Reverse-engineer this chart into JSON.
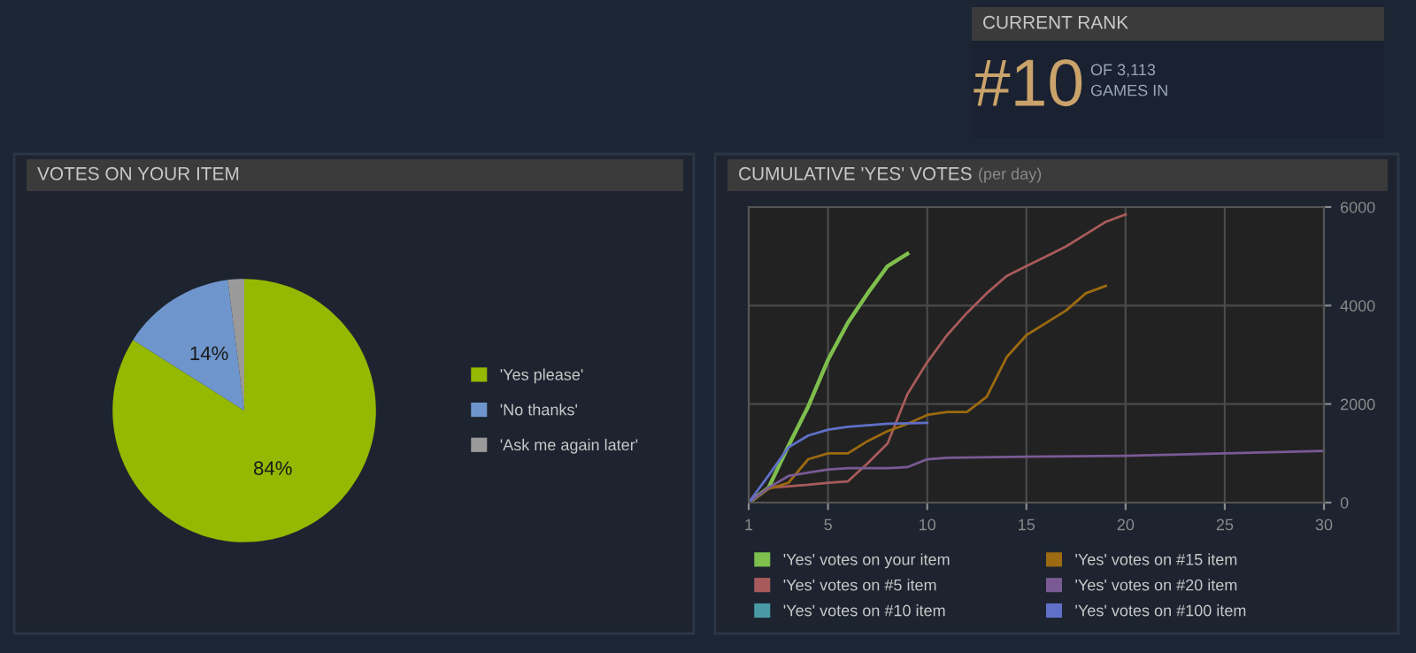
{
  "chart_data": [
    {
      "type": "other",
      "title": "CURRENT RANK",
      "annotations": [
        "#10",
        "OF 3,113\nGAMES IN"
      ]
    },
    {
      "type": "pie",
      "title": "VOTES ON YOUR ITEM",
      "categories": [
        "'Yes please'",
        "'No thanks'",
        "'Ask me again later'"
      ],
      "values": [
        84,
        14,
        2
      ],
      "colors": [
        "#95b800",
        "#6f96cc",
        "#9a9a9a"
      ],
      "value_labels": [
        "84%",
        "14%",
        null
      ],
      "legend": "right"
    },
    {
      "type": "line",
      "title": "CUMULATIVE 'YES' VOTES",
      "subtitle": "(per day)",
      "xlim": [
        1,
        30
      ],
      "ylim": [
        0,
        6000
      ],
      "xticks": [
        1,
        5,
        10,
        15,
        20,
        25,
        30
      ],
      "yticks": [
        0,
        2000,
        4000,
        6000
      ],
      "grid": true,
      "legend": "bottom",
      "series": [
        {
          "name": "'Yes' votes on your item",
          "color": "#7fbf4d",
          "x": [
            1,
            2,
            3,
            4,
            5,
            6,
            7,
            8,
            9
          ],
          "values": [
            0,
            300,
            1150,
            1950,
            2900,
            3650,
            4250,
            4800,
            5050
          ]
        },
        {
          "name": "'Yes' votes on #5 item",
          "color": "#a85a5a",
          "x": [
            1,
            2,
            3,
            4,
            5,
            6,
            7,
            8,
            9,
            10,
            11,
            12,
            13,
            14,
            15,
            16,
            17,
            18,
            19,
            20
          ],
          "values": [
            0,
            300,
            330,
            360,
            400,
            430,
            800,
            1200,
            2200,
            2850,
            3400,
            3850,
            4250,
            4600,
            4800,
            5000,
            5200,
            5450,
            5700,
            5850
          ]
        },
        {
          "name": "'Yes' votes on #10 item",
          "color": "#4a9aa5"
        },
        {
          "name": "'Yes' votes on #15 item",
          "color": "#9c6a10",
          "x": [
            1,
            2,
            3,
            4,
            5,
            6,
            7,
            8,
            9,
            10,
            11,
            12,
            13,
            14,
            15,
            16,
            17,
            18,
            19
          ],
          "values": [
            0,
            280,
            400,
            880,
            1000,
            1000,
            1250,
            1450,
            1600,
            1780,
            1840,
            1840,
            2150,
            2950,
            3400,
            3650,
            3900,
            4250,
            4400
          ]
        },
        {
          "name": "'Yes' votes on #20 item",
          "color": "#7a5a95",
          "x": [
            1,
            2,
            3,
            4,
            5,
            6,
            7,
            8,
            9,
            10,
            11,
            15,
            20,
            25,
            30
          ],
          "values": [
            0,
            300,
            540,
            610,
            670,
            700,
            700,
            700,
            720,
            880,
            910,
            930,
            950,
            1000,
            1050
          ]
        },
        {
          "name": "'Yes' votes on #100 item",
          "color": "#6070c8",
          "x": [
            1,
            2,
            3,
            4,
            5,
            6,
            7,
            8,
            9,
            10
          ],
          "values": [
            0,
            550,
            1120,
            1360,
            1480,
            1540,
            1570,
            1600,
            1610,
            1620
          ]
        }
      ]
    }
  ]
}
